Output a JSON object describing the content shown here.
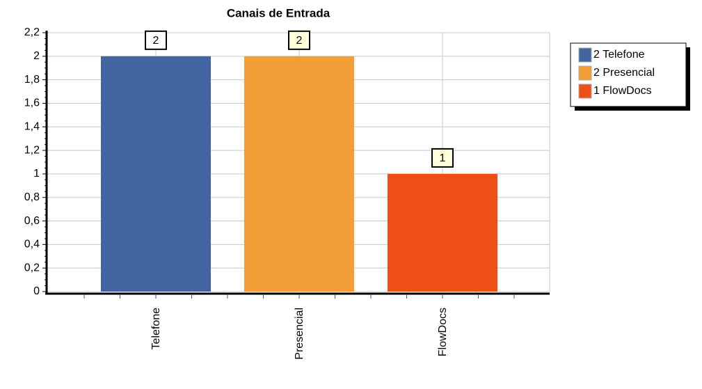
{
  "chart_data": {
    "type": "bar",
    "title": "Canais de Entrada",
    "categories": [
      "Telefone",
      "Presencial",
      "FlowDocs"
    ],
    "values": [
      2,
      2,
      1
    ],
    "colors": [
      "#4366a3",
      "#f39d37",
      "#f04e17"
    ],
    "ylim": [
      0,
      2.2
    ],
    "yticks": [
      0,
      {
        "value": 0.2,
        "label": "0,2"
      },
      {
        "value": 0.4,
        "label": "0,4"
      },
      {
        "value": 0.6,
        "label": "0,6"
      },
      {
        "value": 0.8,
        "label": "0,8"
      },
      1,
      {
        "value": 1.2,
        "label": "1,2"
      },
      {
        "value": 1.4,
        "label": "1,4"
      },
      {
        "value": 1.6,
        "label": "1,6"
      },
      {
        "value": 1.8,
        "label": "1,8"
      },
      2,
      {
        "value": 2.2,
        "label": "2,2"
      }
    ],
    "grid": true,
    "legend": "right"
  }
}
